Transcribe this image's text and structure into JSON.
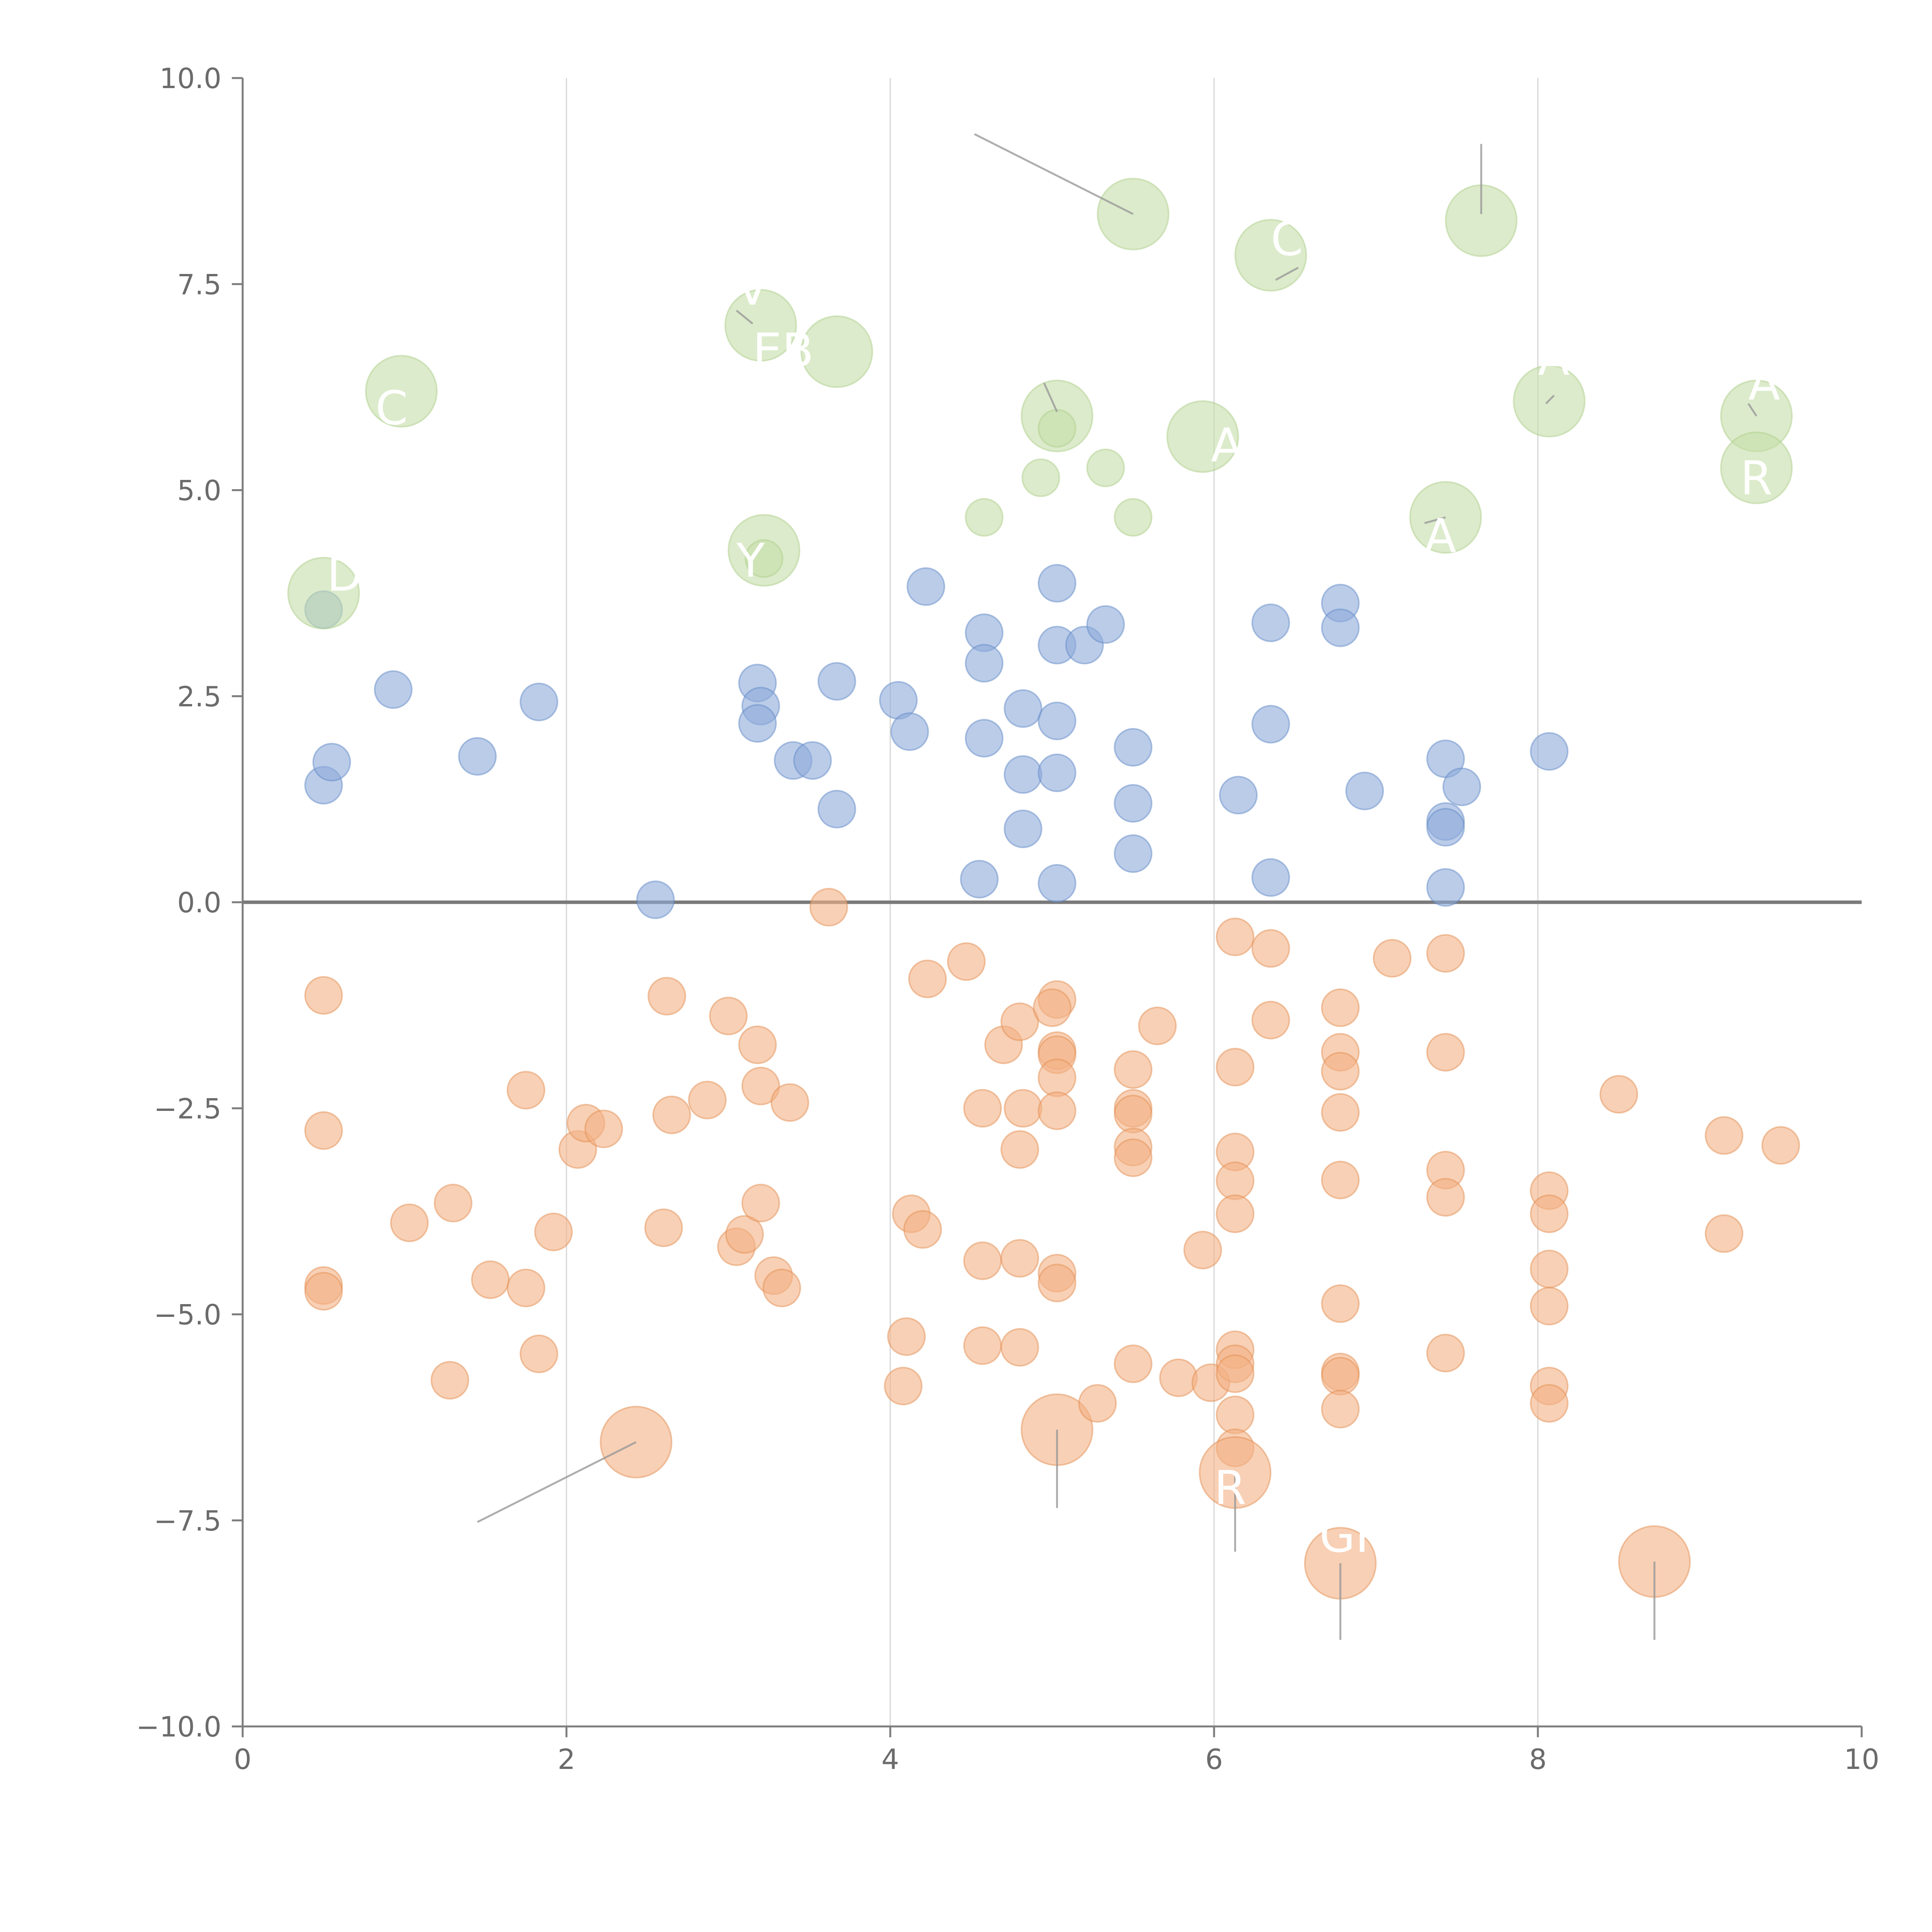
{
  "chart_data": {
    "type": "scatter",
    "title": "",
    "xlabel": "",
    "ylabel": "",
    "xlim": [
      0,
      10
    ],
    "ylim": [
      -10,
      10
    ],
    "x_ticks": [
      "0",
      "2",
      "4",
      "6",
      "8",
      "10"
    ],
    "y_ticks": [
      "10.0",
      "7.5",
      "5.0",
      "2.5",
      "0.0",
      "−2.5",
      "−5.0",
      "−7.5",
      "−10.0"
    ],
    "vertical_grid": true,
    "zero_line": true,
    "colors": {
      "blue": "#8eaadb",
      "orange": "#f4b183",
      "green": "#c5dea8"
    },
    "series": [
      {
        "color": "blue",
        "points": [
          {
            "x": 0.5,
            "y": 3.55,
            "size": 1
          },
          {
            "x": 0.5,
            "y": 1.42,
            "size": 1
          },
          {
            "x": 0.55,
            "y": 1.7,
            "size": 1
          },
          {
            "x": 0.93,
            "y": 2.58,
            "size": 1
          },
          {
            "x": 1.45,
            "y": 1.77,
            "size": 1
          },
          {
            "x": 1.83,
            "y": 2.43,
            "size": 1
          },
          {
            "x": 2.55,
            "y": 0.03,
            "size": 1
          },
          {
            "x": 3.18,
            "y": 2.66,
            "size": 1
          },
          {
            "x": 3.2,
            "y": 2.38,
            "size": 1
          },
          {
            "x": 3.18,
            "y": 2.17,
            "size": 1
          },
          {
            "x": 3.4,
            "y": 1.72,
            "size": 1
          },
          {
            "x": 3.52,
            "y": 1.72,
            "size": 1
          },
          {
            "x": 3.67,
            "y": 2.68,
            "size": 1
          },
          {
            "x": 3.67,
            "y": 1.13,
            "size": 1
          },
          {
            "x": 4.05,
            "y": 2.45,
            "size": 1
          },
          {
            "x": 4.12,
            "y": 2.07,
            "size": 1
          },
          {
            "x": 4.22,
            "y": 3.83,
            "size": 1
          },
          {
            "x": 4.58,
            "y": 3.27,
            "size": 1
          },
          {
            "x": 4.58,
            "y": 2.9,
            "size": 1
          },
          {
            "x": 4.58,
            "y": 1.99,
            "size": 1
          },
          {
            "x": 4.55,
            "y": 0.28,
            "size": 1
          },
          {
            "x": 4.82,
            "y": 2.35,
            "size": 1
          },
          {
            "x": 4.82,
            "y": 1.55,
            "size": 1
          },
          {
            "x": 4.82,
            "y": 0.89,
            "size": 1
          },
          {
            "x": 5.03,
            "y": 3.87,
            "size": 1
          },
          {
            "x": 5.03,
            "y": 3.12,
            "size": 1
          },
          {
            "x": 5.03,
            "y": 2.2,
            "size": 1
          },
          {
            "x": 5.03,
            "y": 1.57,
            "size": 1
          },
          {
            "x": 5.03,
            "y": 0.23,
            "size": 1
          },
          {
            "x": 5.2,
            "y": 3.12,
            "size": 1
          },
          {
            "x": 5.33,
            "y": 3.37,
            "size": 1
          },
          {
            "x": 5.5,
            "y": 1.88,
            "size": 1
          },
          {
            "x": 5.5,
            "y": 1.2,
            "size": 1
          },
          {
            "x": 5.5,
            "y": 0.59,
            "size": 1
          },
          {
            "x": 6.15,
            "y": 1.3,
            "size": 1
          },
          {
            "x": 6.35,
            "y": 3.39,
            "size": 1
          },
          {
            "x": 6.35,
            "y": 2.16,
            "size": 1
          },
          {
            "x": 6.35,
            "y": 0.3,
            "size": 1
          },
          {
            "x": 6.78,
            "y": 3.63,
            "size": 1
          },
          {
            "x": 6.78,
            "y": 3.33,
            "size": 1
          },
          {
            "x": 6.93,
            "y": 1.35,
            "size": 1
          },
          {
            "x": 7.43,
            "y": 1.74,
            "size": 1
          },
          {
            "x": 7.53,
            "y": 1.4,
            "size": 1
          },
          {
            "x": 7.43,
            "y": 0.98,
            "size": 1
          },
          {
            "x": 7.43,
            "y": 0.91,
            "size": 1
          },
          {
            "x": 7.43,
            "y": 0.18,
            "size": 1
          },
          {
            "x": 8.07,
            "y": 1.83,
            "size": 1
          }
        ]
      },
      {
        "color": "orange",
        "points": [
          {
            "x": 0.5,
            "y": -1.13,
            "size": 1
          },
          {
            "x": 0.5,
            "y": -2.77,
            "size": 1
          },
          {
            "x": 0.5,
            "y": -4.65,
            "size": 1
          },
          {
            "x": 0.5,
            "y": -4.72,
            "size": 1
          },
          {
            "x": 1.03,
            "y": -3.89,
            "size": 1
          },
          {
            "x": 1.3,
            "y": -3.65,
            "size": 1
          },
          {
            "x": 1.28,
            "y": -5.8,
            "size": 1
          },
          {
            "x": 1.53,
            "y": -4.58,
            "size": 1
          },
          {
            "x": 1.75,
            "y": -2.28,
            "size": 1
          },
          {
            "x": 1.75,
            "y": -4.68,
            "size": 1
          },
          {
            "x": 1.83,
            "y": -5.48,
            "size": 1
          },
          {
            "x": 1.92,
            "y": -4.0,
            "size": 1
          },
          {
            "x": 2.07,
            "y": -3.0,
            "size": 1
          },
          {
            "x": 2.12,
            "y": -2.68,
            "size": 1
          },
          {
            "x": 2.23,
            "y": -2.75,
            "size": 1
          },
          {
            "x": 2.62,
            "y": -1.14,
            "size": 1
          },
          {
            "x": 2.65,
            "y": -2.58,
            "size": 1
          },
          {
            "x": 2.6,
            "y": -3.95,
            "size": 1
          },
          {
            "x": 2.87,
            "y": -2.4,
            "size": 1
          },
          {
            "x": 3.0,
            "y": -1.38,
            "size": 1
          },
          {
            "x": 3.05,
            "y": -4.18,
            "size": 1
          },
          {
            "x": 3.1,
            "y": -4.03,
            "size": 1
          },
          {
            "x": 3.18,
            "y": -1.73,
            "size": 1
          },
          {
            "x": 3.2,
            "y": -2.23,
            "size": 1
          },
          {
            "x": 3.2,
            "y": -3.65,
            "size": 1
          },
          {
            "x": 3.28,
            "y": -4.53,
            "size": 1
          },
          {
            "x": 3.33,
            "y": -4.68,
            "size": 1
          },
          {
            "x": 3.38,
            "y": -2.43,
            "size": 1
          },
          {
            "x": 3.62,
            "y": -0.06,
            "size": 1
          },
          {
            "x": 4.1,
            "y": -5.27,
            "size": 1
          },
          {
            "x": 4.08,
            "y": -5.87,
            "size": 1
          },
          {
            "x": 4.13,
            "y": -3.78,
            "size": 1
          },
          {
            "x": 4.2,
            "y": -3.97,
            "size": 1
          },
          {
            "x": 4.23,
            "y": -0.93,
            "size": 1
          },
          {
            "x": 4.47,
            "y": -0.72,
            "size": 1
          },
          {
            "x": 4.57,
            "y": -2.5,
            "size": 1
          },
          {
            "x": 4.57,
            "y": -4.35,
            "size": 1
          },
          {
            "x": 4.57,
            "y": -5.38,
            "size": 1
          },
          {
            "x": 4.7,
            "y": -1.73,
            "size": 1
          },
          {
            "x": 4.8,
            "y": -1.45,
            "size": 1
          },
          {
            "x": 4.82,
            "y": -2.5,
            "size": 1
          },
          {
            "x": 4.8,
            "y": -3.0,
            "size": 1
          },
          {
            "x": 4.8,
            "y": -4.32,
            "size": 1
          },
          {
            "x": 4.8,
            "y": -5.4,
            "size": 1
          },
          {
            "x": 5.03,
            "y": -1.18,
            "size": 1
          },
          {
            "x": 5.0,
            "y": -1.28,
            "size": 1
          },
          {
            "x": 5.03,
            "y": -1.8,
            "size": 1
          },
          {
            "x": 5.03,
            "y": -1.85,
            "size": 1
          },
          {
            "x": 5.03,
            "y": -2.13,
            "size": 1
          },
          {
            "x": 5.03,
            "y": -2.53,
            "size": 1
          },
          {
            "x": 5.03,
            "y": -4.5,
            "size": 1
          },
          {
            "x": 5.03,
            "y": -4.62,
            "size": 1
          },
          {
            "x": 5.03,
            "y": -6.4,
            "size": 3
          },
          {
            "x": 5.28,
            "y": -6.08,
            "size": 1
          },
          {
            "x": 5.5,
            "y": -2.03,
            "size": 1
          },
          {
            "x": 5.5,
            "y": -2.5,
            "size": 1
          },
          {
            "x": 5.5,
            "y": -2.57,
            "size": 1
          },
          {
            "x": 5.5,
            "y": -2.97,
            "size": 1
          },
          {
            "x": 5.5,
            "y": -3.1,
            "size": 1
          },
          {
            "x": 5.5,
            "y": -5.6,
            "size": 1
          },
          {
            "x": 5.65,
            "y": -1.5,
            "size": 1
          },
          {
            "x": 5.78,
            "y": -5.77,
            "size": 1
          },
          {
            "x": 5.93,
            "y": -4.22,
            "size": 1
          },
          {
            "x": 5.98,
            "y": -5.83,
            "size": 1
          },
          {
            "x": 6.13,
            "y": -0.42,
            "size": 1
          },
          {
            "x": 6.13,
            "y": -2.0,
            "size": 1
          },
          {
            "x": 6.13,
            "y": -3.03,
            "size": 1
          },
          {
            "x": 6.13,
            "y": -3.38,
            "size": 1
          },
          {
            "x": 6.13,
            "y": -3.78,
            "size": 1
          },
          {
            "x": 6.13,
            "y": -5.43,
            "size": 1
          },
          {
            "x": 6.13,
            "y": -5.6,
            "size": 1
          },
          {
            "x": 6.13,
            "y": -5.72,
            "size": 1
          },
          {
            "x": 6.13,
            "y": -6.22,
            "size": 1
          },
          {
            "x": 6.13,
            "y": -6.62,
            "size": 1
          },
          {
            "x": 6.13,
            "y": -6.92,
            "size": 3
          },
          {
            "x": 6.35,
            "y": -0.56,
            "size": 1
          },
          {
            "x": 6.35,
            "y": -1.43,
            "size": 1
          },
          {
            "x": 6.78,
            "y": -1.28,
            "size": 1
          },
          {
            "x": 6.78,
            "y": -1.82,
            "size": 1
          },
          {
            "x": 6.78,
            "y": -2.05,
            "size": 1
          },
          {
            "x": 6.78,
            "y": -2.55,
            "size": 1
          },
          {
            "x": 6.78,
            "y": -3.37,
            "size": 1
          },
          {
            "x": 6.78,
            "y": -4.87,
            "size": 1
          },
          {
            "x": 6.78,
            "y": -5.7,
            "size": 1
          },
          {
            "x": 6.78,
            "y": -5.75,
            "size": 1
          },
          {
            "x": 6.78,
            "y": -6.15,
            "size": 1
          },
          {
            "x": 6.78,
            "y": -8.02,
            "size": 3
          },
          {
            "x": 7.1,
            "y": -0.68,
            "size": 1
          },
          {
            "x": 7.43,
            "y": -0.62,
            "size": 1
          },
          {
            "x": 7.43,
            "y": -1.82,
            "size": 1
          },
          {
            "x": 7.43,
            "y": -3.25,
            "size": 1
          },
          {
            "x": 7.43,
            "y": -3.58,
            "size": 1
          },
          {
            "x": 7.43,
            "y": -5.47,
            "size": 1
          },
          {
            "x": 8.07,
            "y": -3.5,
            "size": 1
          },
          {
            "x": 8.07,
            "y": -3.78,
            "size": 1
          },
          {
            "x": 8.07,
            "y": -4.45,
            "size": 1
          },
          {
            "x": 8.07,
            "y": -4.9,
            "size": 1
          },
          {
            "x": 8.07,
            "y": -5.87,
            "size": 1
          },
          {
            "x": 8.07,
            "y": -6.08,
            "size": 1
          },
          {
            "x": 8.5,
            "y": -2.33,
            "size": 1
          },
          {
            "x": 8.72,
            "y": -8.0,
            "size": 3
          },
          {
            "x": 9.15,
            "y": -2.83,
            "size": 1
          },
          {
            "x": 9.15,
            "y": -4.02,
            "size": 1
          },
          {
            "x": 9.5,
            "y": -2.95,
            "size": 1
          },
          {
            "x": 2.43,
            "y": -6.55,
            "size": 3
          }
        ]
      },
      {
        "color": "green",
        "points": [
          {
            "x": 0.5,
            "y": 3.75,
            "size": 3
          },
          {
            "x": 0.98,
            "y": 6.2,
            "size": 3
          },
          {
            "x": 3.2,
            "y": 7.0,
            "size": 3
          },
          {
            "x": 3.67,
            "y": 6.68,
            "size": 3
          },
          {
            "x": 3.22,
            "y": 4.27,
            "size": 3
          },
          {
            "x": 3.22,
            "y": 4.17,
            "size": 1
          },
          {
            "x": 4.58,
            "y": 4.67,
            "size": 1
          },
          {
            "x": 4.93,
            "y": 5.15,
            "size": 1
          },
          {
            "x": 5.03,
            "y": 5.9,
            "size": 3
          },
          {
            "x": 5.03,
            "y": 5.75,
            "size": 1
          },
          {
            "x": 5.33,
            "y": 5.27,
            "size": 1
          },
          {
            "x": 5.5,
            "y": 4.67,
            "size": 1
          },
          {
            "x": 5.5,
            "y": 8.35,
            "size": 3
          },
          {
            "x": 5.93,
            "y": 5.65,
            "size": 3
          },
          {
            "x": 6.35,
            "y": 7.85,
            "size": 3
          },
          {
            "x": 7.65,
            "y": 8.27,
            "size": 3
          },
          {
            "x": 7.43,
            "y": 4.67,
            "size": 3
          },
          {
            "x": 8.07,
            "y": 6.08,
            "size": 3
          },
          {
            "x": 9.35,
            "y": 5.9,
            "size": 3
          },
          {
            "x": 9.35,
            "y": 5.27,
            "size": 3
          }
        ]
      }
    ],
    "leader_lines": [
      {
        "x1": 4.52,
        "y1": 9.32,
        "x2": 5.5,
        "y2": 8.35
      },
      {
        "x1": 7.65,
        "y1": 9.2,
        "x2": 7.65,
        "y2": 8.35
      },
      {
        "x1": 6.38,
        "y1": 7.55,
        "x2": 6.52,
        "y2": 7.7
      },
      {
        "x1": 3.05,
        "y1": 7.18,
        "x2": 3.15,
        "y2": 7.02
      },
      {
        "x1": 4.95,
        "y1": 6.3,
        "x2": 5.03,
        "y2": 5.95
      },
      {
        "x1": 8.1,
        "y1": 6.15,
        "x2": 8.05,
        "y2": 6.05
      },
      {
        "x1": 9.3,
        "y1": 6.05,
        "x2": 9.35,
        "y2": 5.9
      },
      {
        "x1": 7.3,
        "y1": 4.6,
        "x2": 7.43,
        "y2": 4.67
      },
      {
        "x1": 1.45,
        "y1": -7.52,
        "x2": 2.43,
        "y2": -6.55
      },
      {
        "x1": 5.03,
        "y1": -7.35,
        "x2": 5.03,
        "y2": -6.4
      },
      {
        "x1": 6.13,
        "y1": -7.88,
        "x2": 6.13,
        "y2": -6.92
      },
      {
        "x1": 6.78,
        "y1": -8.95,
        "x2": 6.78,
        "y2": -8.02
      },
      {
        "x1": 8.72,
        "y1": -8.95,
        "x2": 8.72,
        "y2": -8.0
      }
    ],
    "annotations": [
      {
        "x": 0.52,
        "y": 3.78,
        "text": "D"
      },
      {
        "x": 0.82,
        "y": 5.8,
        "text": "C"
      },
      {
        "x": 3.05,
        "y": 7.25,
        "text": "V"
      },
      {
        "x": 3.15,
        "y": 6.5,
        "text": "EB"
      },
      {
        "x": 3.05,
        "y": 3.95,
        "text": "Y"
      },
      {
        "x": 5.98,
        "y": 5.35,
        "text": "A"
      },
      {
        "x": 6.35,
        "y": 7.85,
        "text": "C"
      },
      {
        "x": 7.3,
        "y": 4.25,
        "text": "A"
      },
      {
        "x": 8.0,
        "y": 6.4,
        "text": "A"
      },
      {
        "x": 9.3,
        "y": 6.1,
        "text": "A"
      },
      {
        "x": 9.25,
        "y": 4.95,
        "text": "R"
      },
      {
        "x": 6.0,
        "y": -7.3,
        "text": "R"
      },
      {
        "x": 6.65,
        "y": -7.88,
        "text": "GR"
      }
    ]
  }
}
